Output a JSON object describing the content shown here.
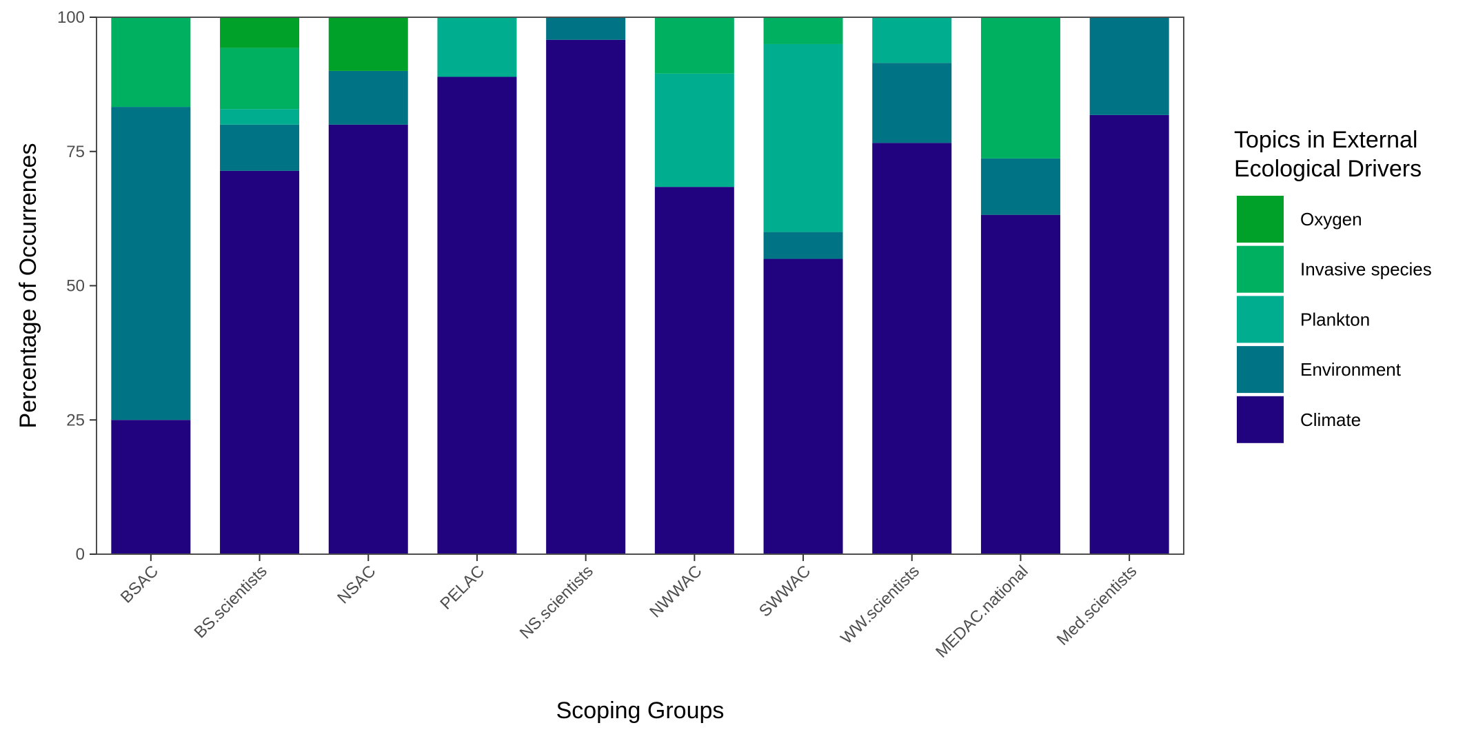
{
  "chart_data": {
    "type": "bar",
    "stacked": true,
    "xlabel": "Scoping Groups",
    "ylabel": "Percentage of Occurrences",
    "ylim": [
      0,
      100
    ],
    "yticks": [
      0,
      25,
      50,
      75,
      100
    ],
    "grid": false,
    "legend_position": "right",
    "legend": {
      "title_lines": [
        "Topics in External",
        "Ecological Drivers"
      ]
    },
    "categories": [
      "BSAC",
      "BS.scientists",
      "NSAC",
      "PELAC",
      "NS.scientists",
      "NWWAC",
      "SWWAC",
      "WW.scientists",
      "MEDAC.national",
      "Med.scientists"
    ],
    "series": [
      {
        "name": "Climate",
        "color": "#22037f",
        "values": [
          25,
          71.4,
          80,
          88.9,
          95.8,
          68.4,
          55,
          76.6,
          63.2,
          81.8
        ]
      },
      {
        "name": "Environment",
        "color": "#007385",
        "values": [
          58.3,
          8.6,
          10,
          0,
          4.2,
          0,
          5,
          14.9,
          10.5,
          18.2
        ]
      },
      {
        "name": "Plankton",
        "color": "#00ae8f",
        "values": [
          0,
          2.9,
          0,
          11.1,
          0,
          21.1,
          35,
          8.5,
          0,
          0
        ]
      },
      {
        "name": "Invasive species",
        "color": "#00b061",
        "values": [
          16.7,
          11.4,
          0,
          0,
          0,
          10.5,
          5,
          0,
          26.3,
          0
        ]
      },
      {
        "name": "Oxygen",
        "color": "#00a128",
        "values": [
          0,
          5.7,
          10,
          0,
          0,
          0,
          0,
          0,
          0,
          0
        ]
      }
    ]
  }
}
